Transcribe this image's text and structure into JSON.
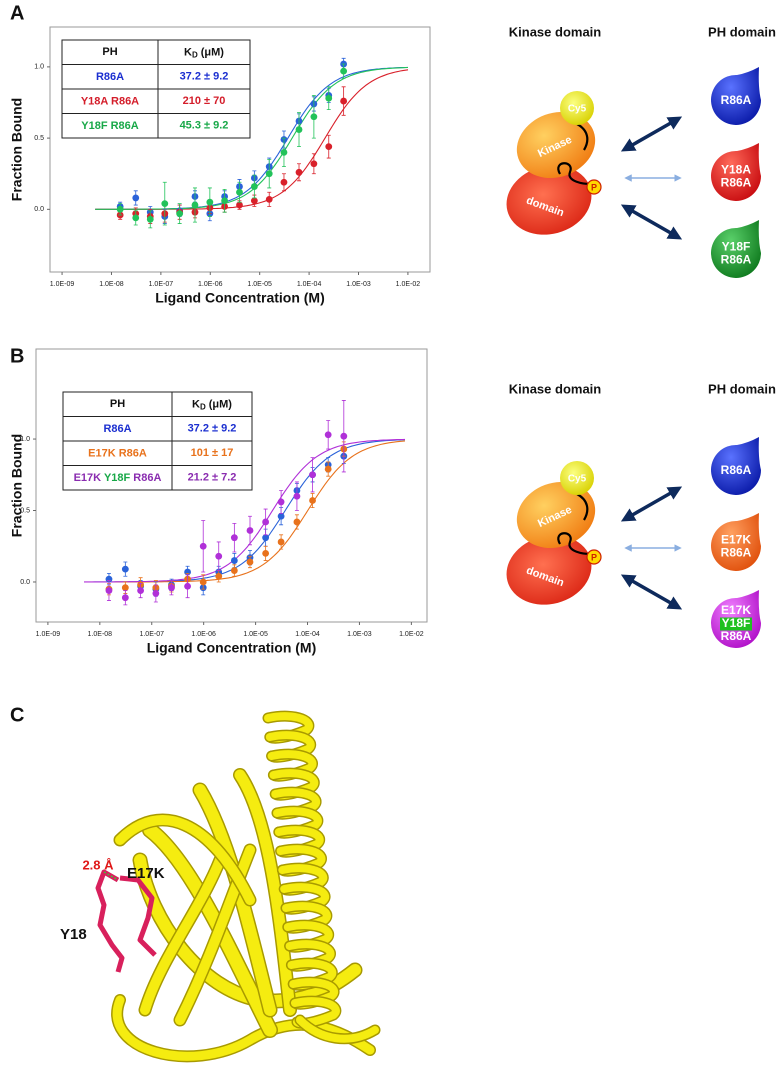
{
  "panels": [
    "A",
    "B",
    "C"
  ],
  "chart_data": [
    {
      "type": "scatter",
      "xlabel": "Ligand Concentration (M)",
      "ylabel": "Fraction Bound",
      "xlog": true,
      "grid": false,
      "xlim": [
        5.7e-10,
        0.028
      ],
      "ylim": [
        -0.44,
        1.28
      ],
      "xticks": [
        {
          "value": 1e-09,
          "label": "1.0E-09"
        },
        {
          "value": 1e-08,
          "label": "1.0E-08"
        },
        {
          "value": 1e-07,
          "label": "1.0E-07"
        },
        {
          "value": 1e-06,
          "label": "1.0E-06"
        },
        {
          "value": 1e-05,
          "label": "1.0E-05"
        },
        {
          "value": 0.0001,
          "label": "1.0E-04"
        },
        {
          "value": 0.001,
          "label": "1.0E-03"
        },
        {
          "value": 0.01,
          "label": "1.0E-02"
        }
      ],
      "yticks": [
        {
          "value": 0,
          "label": "0.0"
        },
        {
          "value": 0.5,
          "label": "0.5"
        },
        {
          "value": 1,
          "label": "1.0"
        }
      ],
      "x": [
        1.5e-08,
        3.1e-08,
        6.1e-08,
        1.2e-07,
        2.4e-07,
        4.9e-07,
        9.8e-07,
        1.95e-06,
        3.9e-06,
        7.8e-06,
        1.56e-05,
        3.1e-05,
        6.25e-05,
        0.000125,
        0.00025,
        0.0005
      ],
      "series": [
        {
          "name": "R86A",
          "color": "#2a62d9",
          "kd": 3.72e-05,
          "values": [
            0.02,
            0.08,
            -0.02,
            -0.05,
            -0.01,
            0.09,
            -0.03,
            0.09,
            0.16,
            0.22,
            0.3,
            0.49,
            0.62,
            0.74,
            0.8,
            1.02
          ],
          "errors": [
            0.03,
            0.05,
            0.04,
            0.05,
            0.04,
            0.04,
            0.05,
            0.04,
            0.05,
            0.05,
            0.06,
            0.06,
            0.05,
            0.05,
            0.05,
            0.04
          ]
        },
        {
          "name": "Y18A R86A",
          "color": "#d9202a",
          "kd": 0.00021,
          "values": [
            -0.04,
            -0.03,
            -0.05,
            -0.03,
            -0.02,
            -0.02,
            0.01,
            0.02,
            0.03,
            0.06,
            0.07,
            0.19,
            0.26,
            0.32,
            0.44,
            0.76
          ],
          "errors": [
            0.03,
            0.04,
            0.05,
            0.06,
            0.05,
            0.04,
            0.04,
            0.04,
            0.03,
            0.04,
            0.05,
            0.06,
            0.06,
            0.07,
            0.08,
            0.1
          ]
        },
        {
          "name": "Y18F R86A",
          "color": "#22c25a",
          "kd": 4.53e-05,
          "values": [
            0.0,
            -0.06,
            -0.07,
            0.04,
            -0.03,
            0.03,
            0.05,
            0.06,
            0.12,
            0.16,
            0.25,
            0.4,
            0.56,
            0.65,
            0.78,
            0.97
          ],
          "errors": [
            0.04,
            0.05,
            0.06,
            0.15,
            0.07,
            0.12,
            0.1,
            0.08,
            0.07,
            0.08,
            0.1,
            0.1,
            0.12,
            0.15,
            0.08,
            0.05
          ]
        }
      ],
      "table": {
        "ph": "PH",
        "k": "K",
        "sub": "D",
        "unit": "(μM)",
        "rows": [
          {
            "name": [
              {
                "text": "R86A",
                "color": "#1b2fd0"
              }
            ],
            "kd": "37.2 ± 9.2",
            "color": "#1b2fd0"
          },
          {
            "name": [
              {
                "text": "Y18A R86A",
                "color": "#d41d2a"
              }
            ],
            "kd": "210 ± 70",
            "color": "#d41d2a"
          },
          {
            "name": [
              {
                "text": "Y18F R86A",
                "color": "#18a848"
              }
            ],
            "kd": "45.3 ± 9.2",
            "color": "#18a848"
          }
        ]
      }
    },
    {
      "type": "scatter",
      "xlabel": "Ligand Concentration (M)",
      "ylabel": "Fraction Bound",
      "xlog": true,
      "grid": false,
      "xlim": [
        5.9e-10,
        0.02
      ],
      "ylim": [
        -0.28,
        1.63
      ],
      "xticks": [
        {
          "value": 1e-09,
          "label": "1.0E-09"
        },
        {
          "value": 1e-08,
          "label": "1.0E-08"
        },
        {
          "value": 1e-07,
          "label": "1.0E-07"
        },
        {
          "value": 1e-06,
          "label": "1.0E-06"
        },
        {
          "value": 1e-05,
          "label": "1.0E-05"
        },
        {
          "value": 0.0001,
          "label": "1.0E-04"
        },
        {
          "value": 0.001,
          "label": "1.0E-03"
        },
        {
          "value": 0.01,
          "label": "1.0E-02"
        }
      ],
      "yticks": [
        {
          "value": 0,
          "label": "0.0"
        },
        {
          "value": 0.5,
          "label": "0.5"
        },
        {
          "value": 1,
          "label": "1.0"
        }
      ],
      "x": [
        1.5e-08,
        3.1e-08,
        6.1e-08,
        1.2e-07,
        2.4e-07,
        4.9e-07,
        9.8e-07,
        1.95e-06,
        3.9e-06,
        7.8e-06,
        1.56e-05,
        3.1e-05,
        6.25e-05,
        0.000125,
        0.00025,
        0.0005
      ],
      "series": [
        {
          "name": "R86A",
          "color": "#2a62d9",
          "kd": 3.72e-05,
          "values": [
            0.02,
            0.09,
            -0.03,
            -0.05,
            -0.02,
            0.07,
            -0.04,
            0.07,
            0.15,
            0.17,
            0.31,
            0.46,
            0.64,
            0.75,
            0.82,
            0.88
          ],
          "errors": [
            0.04,
            0.05,
            0.04,
            0.05,
            0.04,
            0.04,
            0.05,
            0.04,
            0.05,
            0.05,
            0.06,
            0.06,
            0.05,
            0.05,
            0.05,
            0.05
          ]
        },
        {
          "name": "E17K R86A",
          "color": "#e8721c",
          "kd": 0.000101,
          "values": [
            -0.05,
            -0.04,
            -0.02,
            -0.04,
            -0.03,
            0.02,
            0.0,
            0.04,
            0.08,
            0.14,
            0.2,
            0.28,
            0.42,
            0.57,
            0.79,
            0.93
          ],
          "errors": [
            0.04,
            0.04,
            0.05,
            0.05,
            0.04,
            0.04,
            0.05,
            0.04,
            0.04,
            0.04,
            0.05,
            0.05,
            0.05,
            0.05,
            0.05,
            0.05
          ]
        },
        {
          "name": "E17K Y18F R86A",
          "color": "#b030d8",
          "kd": 2.12e-05,
          "values": [
            -0.06,
            -0.11,
            -0.06,
            -0.08,
            -0.04,
            -0.03,
            0.25,
            0.18,
            0.31,
            0.36,
            0.42,
            0.56,
            0.6,
            0.75,
            1.03,
            1.02
          ],
          "errors": [
            0.07,
            0.05,
            0.05,
            0.06,
            0.05,
            0.08,
            0.18,
            0.1,
            0.1,
            0.1,
            0.09,
            0.08,
            0.1,
            0.12,
            0.1,
            0.25
          ]
        }
      ],
      "table": {
        "ph": "PH",
        "k": "K",
        "sub": "D",
        "unit": "(μM)",
        "rows": [
          {
            "name": [
              {
                "text": "R86A",
                "color": "#1b2fd0"
              }
            ],
            "kd": "37.2 ± 9.2",
            "color": "#1b2fd0"
          },
          {
            "name": [
              {
                "text": "E17K R86A",
                "color": "#e8721c"
              }
            ],
            "kd": "101 ± 17",
            "color": "#e8721c"
          },
          {
            "name": [
              {
                "text": "E17K ",
                "color": "#8a2cb0"
              },
              {
                "text": "Y18F ",
                "color": "#18a848"
              },
              {
                "text": "R86A",
                "color": "#8a2cb0"
              }
            ],
            "kd": "21.2 ± 7.2",
            "color": "#8a2cb0"
          }
        ]
      }
    }
  ],
  "diagrams": [
    {
      "kinase_title": "Kinase domain",
      "ph_title": "PH domain",
      "cy5": "Cy5",
      "kinase": "Kinase",
      "domain": "domain",
      "phospho": "P",
      "variants": [
        [
          "R86A"
        ],
        [
          "Y18A",
          "R86A"
        ],
        [
          "Y18F",
          "R86A"
        ]
      ]
    },
    {
      "kinase_title": "Kinase domain",
      "ph_title": "PH domain",
      "cy5": "Cy5",
      "kinase": "Kinase",
      "domain": "domain",
      "phospho": "P",
      "variants": [
        [
          "R86A"
        ],
        [
          "E17K",
          "R86A"
        ],
        [
          "E17K",
          "Y18F",
          "R86A"
        ]
      ]
    }
  ],
  "structure": {
    "distance": "2.8 Å",
    "e17k": "E17K",
    "y18": "Y18"
  }
}
